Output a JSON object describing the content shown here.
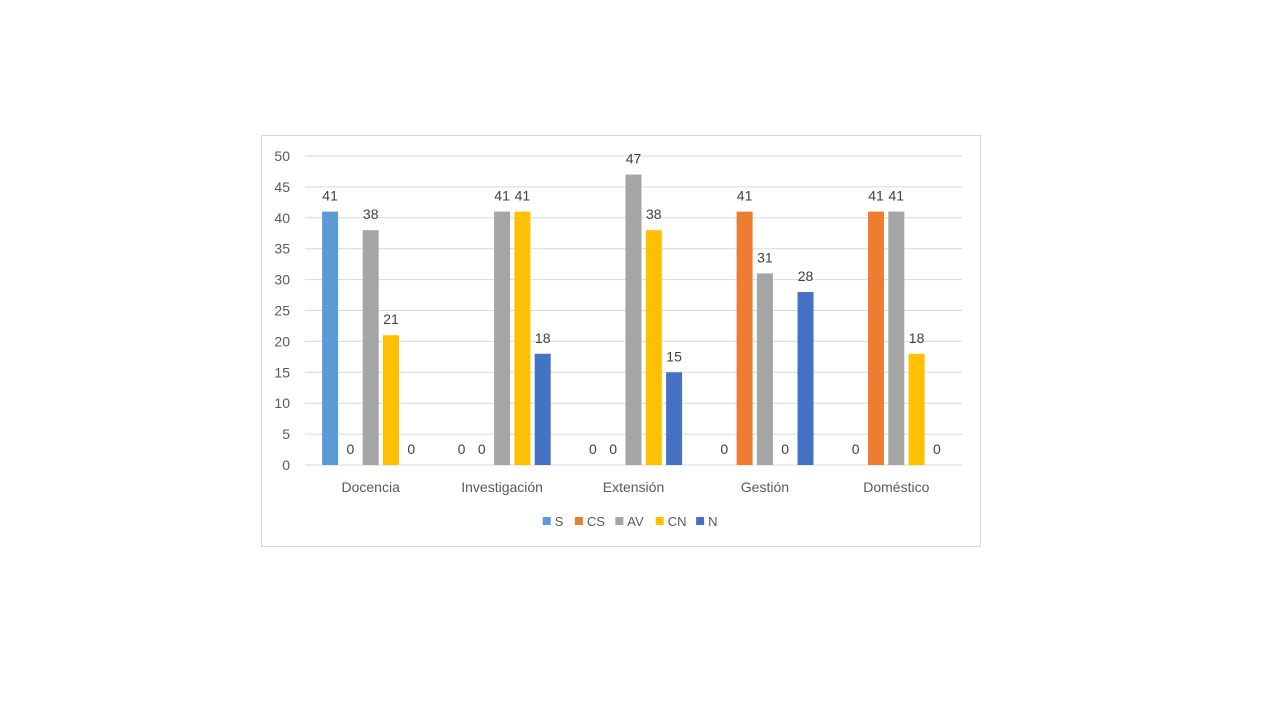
{
  "chart_data": {
    "type": "bar",
    "title": "",
    "xlabel": "",
    "ylabel": "",
    "ylim": [
      0,
      50
    ],
    "ytick_step": 5,
    "grid": true,
    "legend_position": "bottom",
    "categories": [
      "Docencia",
      "Investigación",
      "Extensión",
      "Gestión",
      "Doméstico"
    ],
    "series": [
      {
        "name": "S",
        "color": "#5b9bd5",
        "values": [
          41,
          0,
          0,
          0,
          0
        ]
      },
      {
        "name": "CS",
        "color": "#ed7d31",
        "values": [
          0,
          0,
          0,
          41,
          41
        ]
      },
      {
        "name": "AV",
        "color": "#a5a5a5",
        "values": [
          38,
          41,
          47,
          31,
          41
        ]
      },
      {
        "name": "CN",
        "color": "#ffc000",
        "values": [
          21,
          41,
          38,
          0,
          18
        ]
      },
      {
        "name": "N",
        "color": "#4472c4",
        "values": [
          0,
          18,
          15,
          28,
          0
        ]
      }
    ]
  }
}
